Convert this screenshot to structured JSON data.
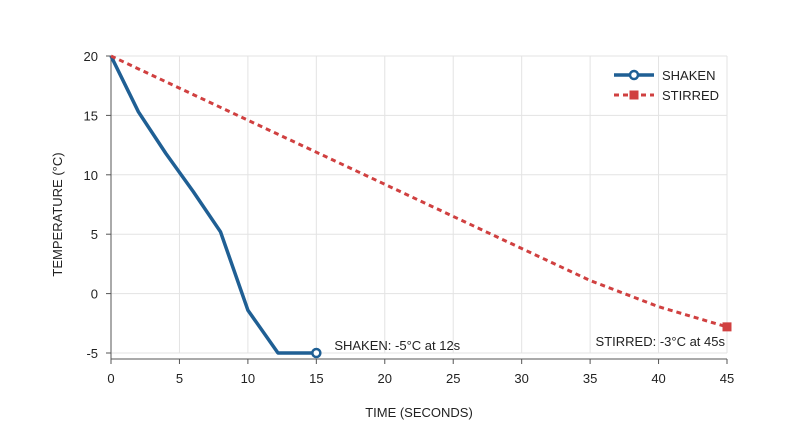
{
  "chart_data": {
    "type": "line",
    "title": "",
    "xlabel": "TIME (SECONDS)",
    "ylabel": "TEMPERATURE (°C)",
    "xlim": [
      0,
      45
    ],
    "ylim": [
      -5,
      20
    ],
    "xticks": [
      0,
      5,
      10,
      15,
      20,
      25,
      30,
      35,
      40,
      45
    ],
    "yticks": [
      -5,
      0,
      5,
      10,
      15,
      20
    ],
    "grid": true,
    "legend_position": "top-right",
    "series": [
      {
        "name": "SHAKEN",
        "color": "#1f5f94",
        "style": "solid",
        "marker": "open-circle-at-end",
        "x": [
          0,
          2,
          4,
          6,
          8,
          10,
          12.2,
          15
        ],
        "y": [
          20,
          15.3,
          11.8,
          8.6,
          5.2,
          -1.4,
          -5,
          -5
        ]
      },
      {
        "name": "STIRRED",
        "color": "#d04040",
        "style": "dashed",
        "marker": "square-at-end",
        "x": [
          0,
          5,
          10,
          15,
          20,
          25,
          30,
          35,
          40,
          45
        ],
        "y": [
          20,
          17.3,
          14.6,
          11.9,
          9.2,
          6.5,
          3.8,
          1.1,
          -1.1,
          -2.8
        ]
      }
    ],
    "annotations": [
      {
        "id": "shaken",
        "text": "SHAKEN: -5°C at 12s",
        "x": 15,
        "y": -5
      },
      {
        "id": "stirred",
        "text": "STIRRED: -3°C at 45s",
        "x": 45,
        "y": -3
      }
    ]
  }
}
